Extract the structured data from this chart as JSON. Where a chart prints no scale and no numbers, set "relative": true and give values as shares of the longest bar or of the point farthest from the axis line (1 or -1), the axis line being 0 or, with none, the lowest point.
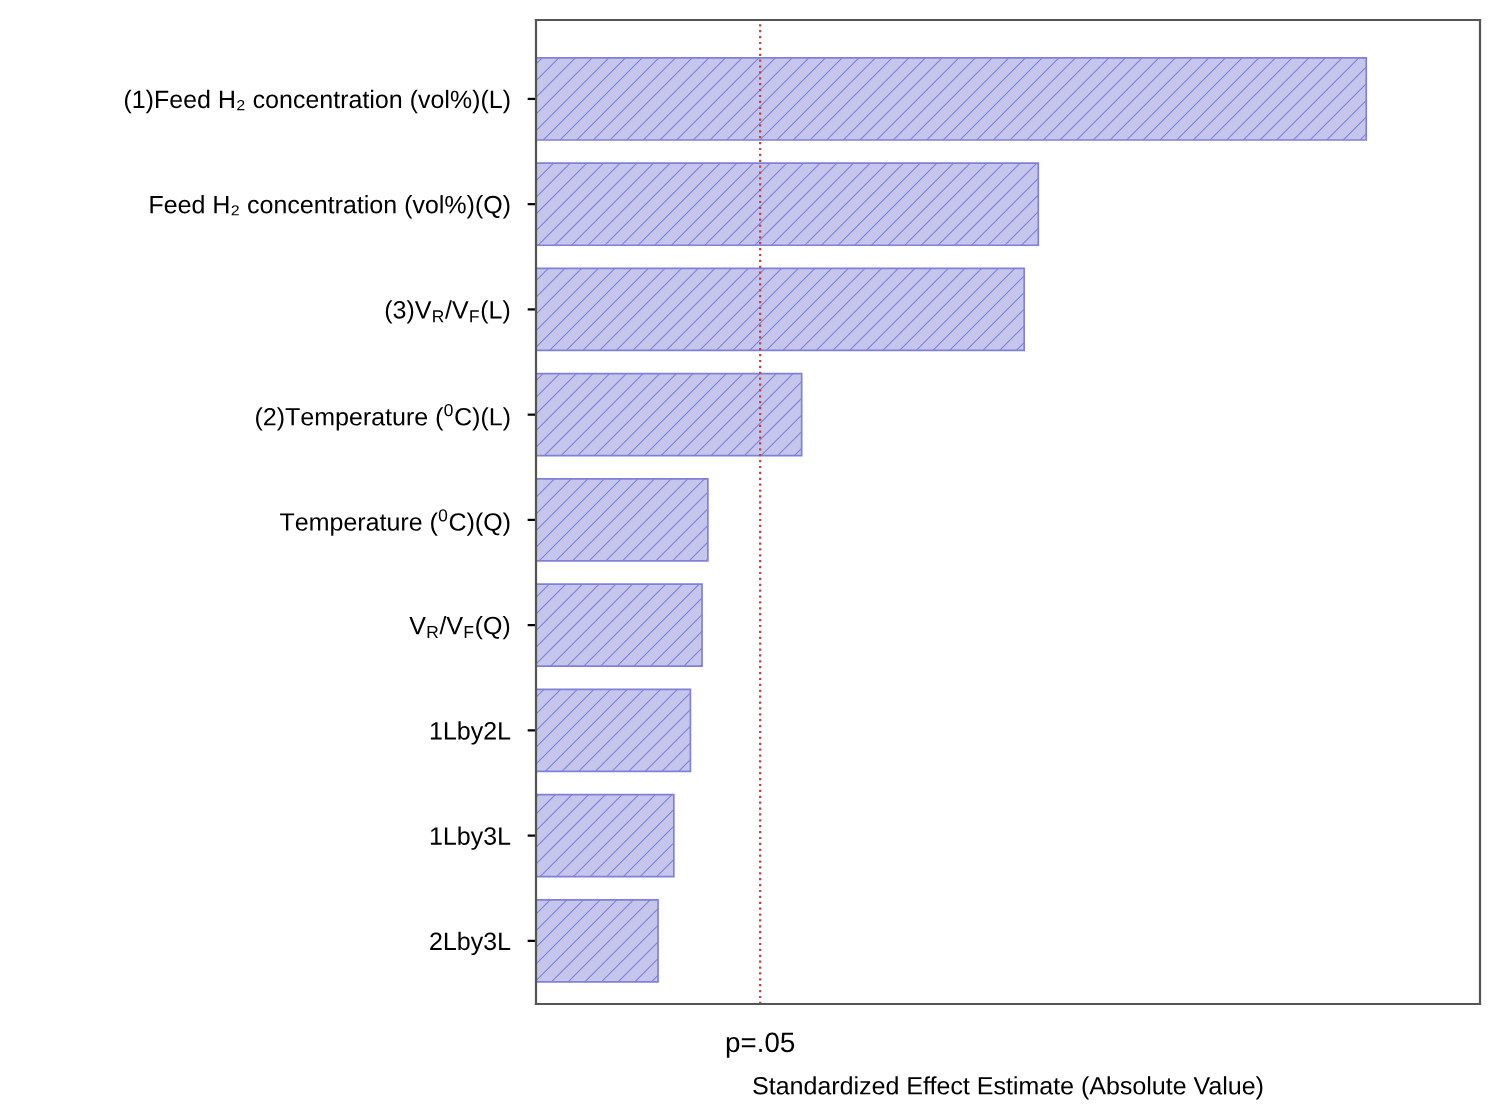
{
  "chart_data": {
    "type": "bar",
    "orientation": "horizontal",
    "relative": true,
    "xlabel": "Standardized Effect Estimate (Absolute Value)",
    "categories": [
      "(1)Feed H₂ concentration (vol%)(L)",
      "Feed H₂ concentration (vol%)(Q)",
      "(3)V$_{R}$/V$_{F}$(L)",
      "(2)Temperature ($^{0}$C)(L)",
      "Temperature ($^{0}$C)(Q)",
      "V$_{R}$/V$_{F}$(Q)",
      "1Lby2L",
      "1Lby3L",
      "2Lby3L"
    ],
    "values": [
      1,
      0.605,
      0.588,
      0.32,
      0.207,
      0.2,
      0.186,
      0.166,
      0.147
    ],
    "color": "#8080d8",
    "ref_lines": [
      {
        "axis": "x",
        "value": 0.27,
        "label": "p=.05",
        "color": "#c04040",
        "line_style": "dotted"
      }
    ]
  }
}
